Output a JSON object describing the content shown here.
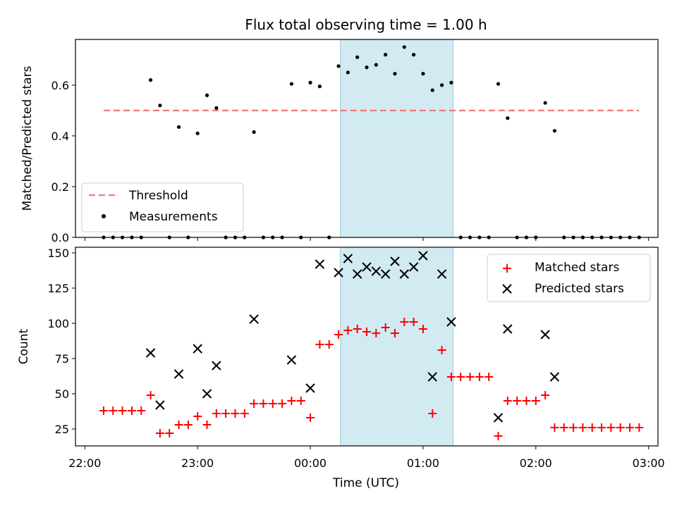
{
  "chart_data": [
    {
      "type": "scatter",
      "title": "Flux total observing time = 1.00 h",
      "xlabel": "",
      "ylabel": "Matched/Predicted stars",
      "ylim": [
        0,
        0.78
      ],
      "yticks": [
        "0.0",
        "0.2",
        "0.4",
        "0.6"
      ],
      "ytick_values": [
        0,
        0.2,
        0.4,
        0.6
      ],
      "xlim_minutes": [
        -125,
        185
      ],
      "threshold": {
        "name": "Threshold",
        "value": 0.5,
        "x_range_minutes": [
          -110,
          175
        ],
        "color": "#f07a7a"
      },
      "shaded_region_minutes": [
        16,
        76
      ],
      "shade_color": "#add8e6",
      "legend_position": "lower-left",
      "series": [
        {
          "name": "Measurements",
          "color": "#000000",
          "x_minutes": [
            -110,
            -105,
            -100,
            -95,
            -90,
            -85,
            -80,
            -75,
            -70,
            -65,
            -60,
            -55,
            -50,
            -45,
            -40,
            -35,
            -30,
            -25,
            -20,
            -15,
            -10,
            -5,
            0,
            5,
            10,
            15,
            20,
            25,
            30,
            35,
            40,
            45,
            50,
            55,
            60,
            65,
            70,
            75,
            80,
            85,
            90,
            95,
            100,
            105,
            110,
            115,
            120,
            125,
            130,
            135,
            140,
            145,
            150,
            155,
            160,
            165,
            170,
            175
          ],
          "y": [
            0,
            0,
            0,
            0,
            0,
            0.62,
            0.52,
            0,
            0.435,
            0,
            0.41,
            0.56,
            0.51,
            0,
            0,
            0,
            0.415,
            0,
            0,
            0,
            0.605,
            0,
            0.61,
            0.595,
            0,
            0.675,
            0.65,
            0.71,
            0.67,
            0.68,
            0.72,
            0.645,
            0.75,
            0.72,
            0.645,
            0.58,
            0.6,
            0.61,
            0,
            0,
            0,
            0,
            0.605,
            0.47,
            0,
            0,
            0,
            0.53,
            0.42,
            0,
            0,
            0,
            0,
            0,
            0,
            0,
            0,
            0
          ]
        }
      ]
    },
    {
      "type": "scatter",
      "title": "",
      "xlabel": "Time (UTC)",
      "ylabel": "Count",
      "ylim": [
        13,
        154
      ],
      "yticks": [
        "25",
        "50",
        "75",
        "100",
        "125",
        "150"
      ],
      "ytick_values": [
        25,
        50,
        75,
        100,
        125,
        150
      ],
      "xticks": [
        "22:00",
        "23:00",
        "00:00",
        "01:00",
        "02:00",
        "03:00"
      ],
      "xtick_minutes": [
        -120,
        -60,
        0,
        60,
        120,
        180
      ],
      "xlim_minutes": [
        -125,
        185
      ],
      "shaded_region_minutes": [
        16,
        76
      ],
      "legend_position": "upper-right",
      "series": [
        {
          "name": "Matched stars",
          "marker": "plus",
          "color": "#ff0000",
          "x_minutes": [
            -110,
            -105,
            -100,
            -95,
            -90,
            -85,
            -80,
            -75,
            -70,
            -65,
            -60,
            -55,
            -50,
            -45,
            -40,
            -35,
            -30,
            -25,
            -20,
            -15,
            -10,
            -5,
            0,
            5,
            10,
            15,
            20,
            25,
            30,
            35,
            40,
            45,
            50,
            55,
            60,
            65,
            70,
            75,
            80,
            85,
            90,
            95,
            100,
            105,
            110,
            115,
            120,
            125,
            130,
            135,
            140,
            145,
            150,
            155,
            160,
            165,
            170,
            175
          ],
          "y": [
            38,
            38,
            38,
            38,
            38,
            49,
            22,
            22,
            28,
            28,
            34,
            28,
            36,
            36,
            36,
            36,
            43,
            43,
            43,
            43,
            45,
            45,
            33,
            85,
            85,
            92,
            95,
            96,
            94,
            93,
            97,
            93,
            101,
            101,
            96,
            36,
            81,
            62,
            62,
            62,
            62,
            62,
            20,
            45,
            45,
            45,
            45,
            49,
            26,
            26,
            26,
            26,
            26,
            26,
            26,
            26,
            26,
            26
          ]
        },
        {
          "name": "Predicted stars",
          "marker": "x",
          "color": "#000000",
          "x_minutes": [
            -85,
            -80,
            -70,
            -60,
            -55,
            -50,
            -30,
            -10,
            0,
            5,
            15,
            20,
            25,
            30,
            35,
            40,
            45,
            50,
            55,
            60,
            65,
            70,
            75,
            100,
            105,
            125,
            130
          ],
          "y": [
            79,
            42,
            64,
            82,
            50,
            70,
            103,
            74,
            54,
            142,
            136,
            146,
            135,
            140,
            137,
            135,
            144,
            135,
            140,
            148,
            62,
            135,
            101,
            33,
            96,
            92,
            62
          ]
        }
      ]
    }
  ]
}
